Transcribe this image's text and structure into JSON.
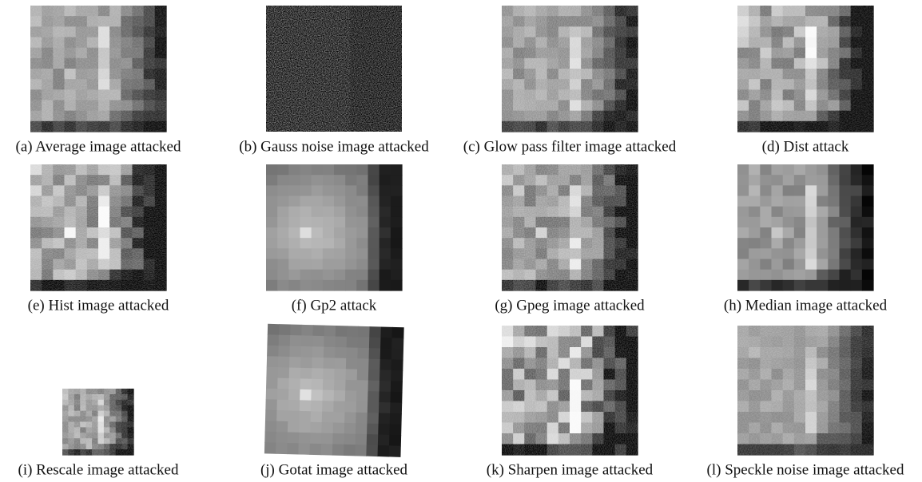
{
  "figure": {
    "panels": [
      {
        "caption": "(a) Average image attacked"
      },
      {
        "caption": "(b) Gauss noise image attacked"
      },
      {
        "caption": "(c) Glow pass filter image attacked"
      },
      {
        "caption": "(d) Dist attack"
      },
      {
        "caption": "(e) Hist image attacked"
      },
      {
        "caption": "(f) Gp2 attack"
      },
      {
        "caption": "(g) Gpeg image attacked"
      },
      {
        "caption": "(h) Median image attacked"
      },
      {
        "caption": "(i) Rescale image attacked"
      },
      {
        "caption": "(j) Gotat image attacked"
      },
      {
        "caption": "(k) Sharpen image attacked"
      },
      {
        "caption": "(l) Speckle noise image attacked"
      }
    ]
  }
}
